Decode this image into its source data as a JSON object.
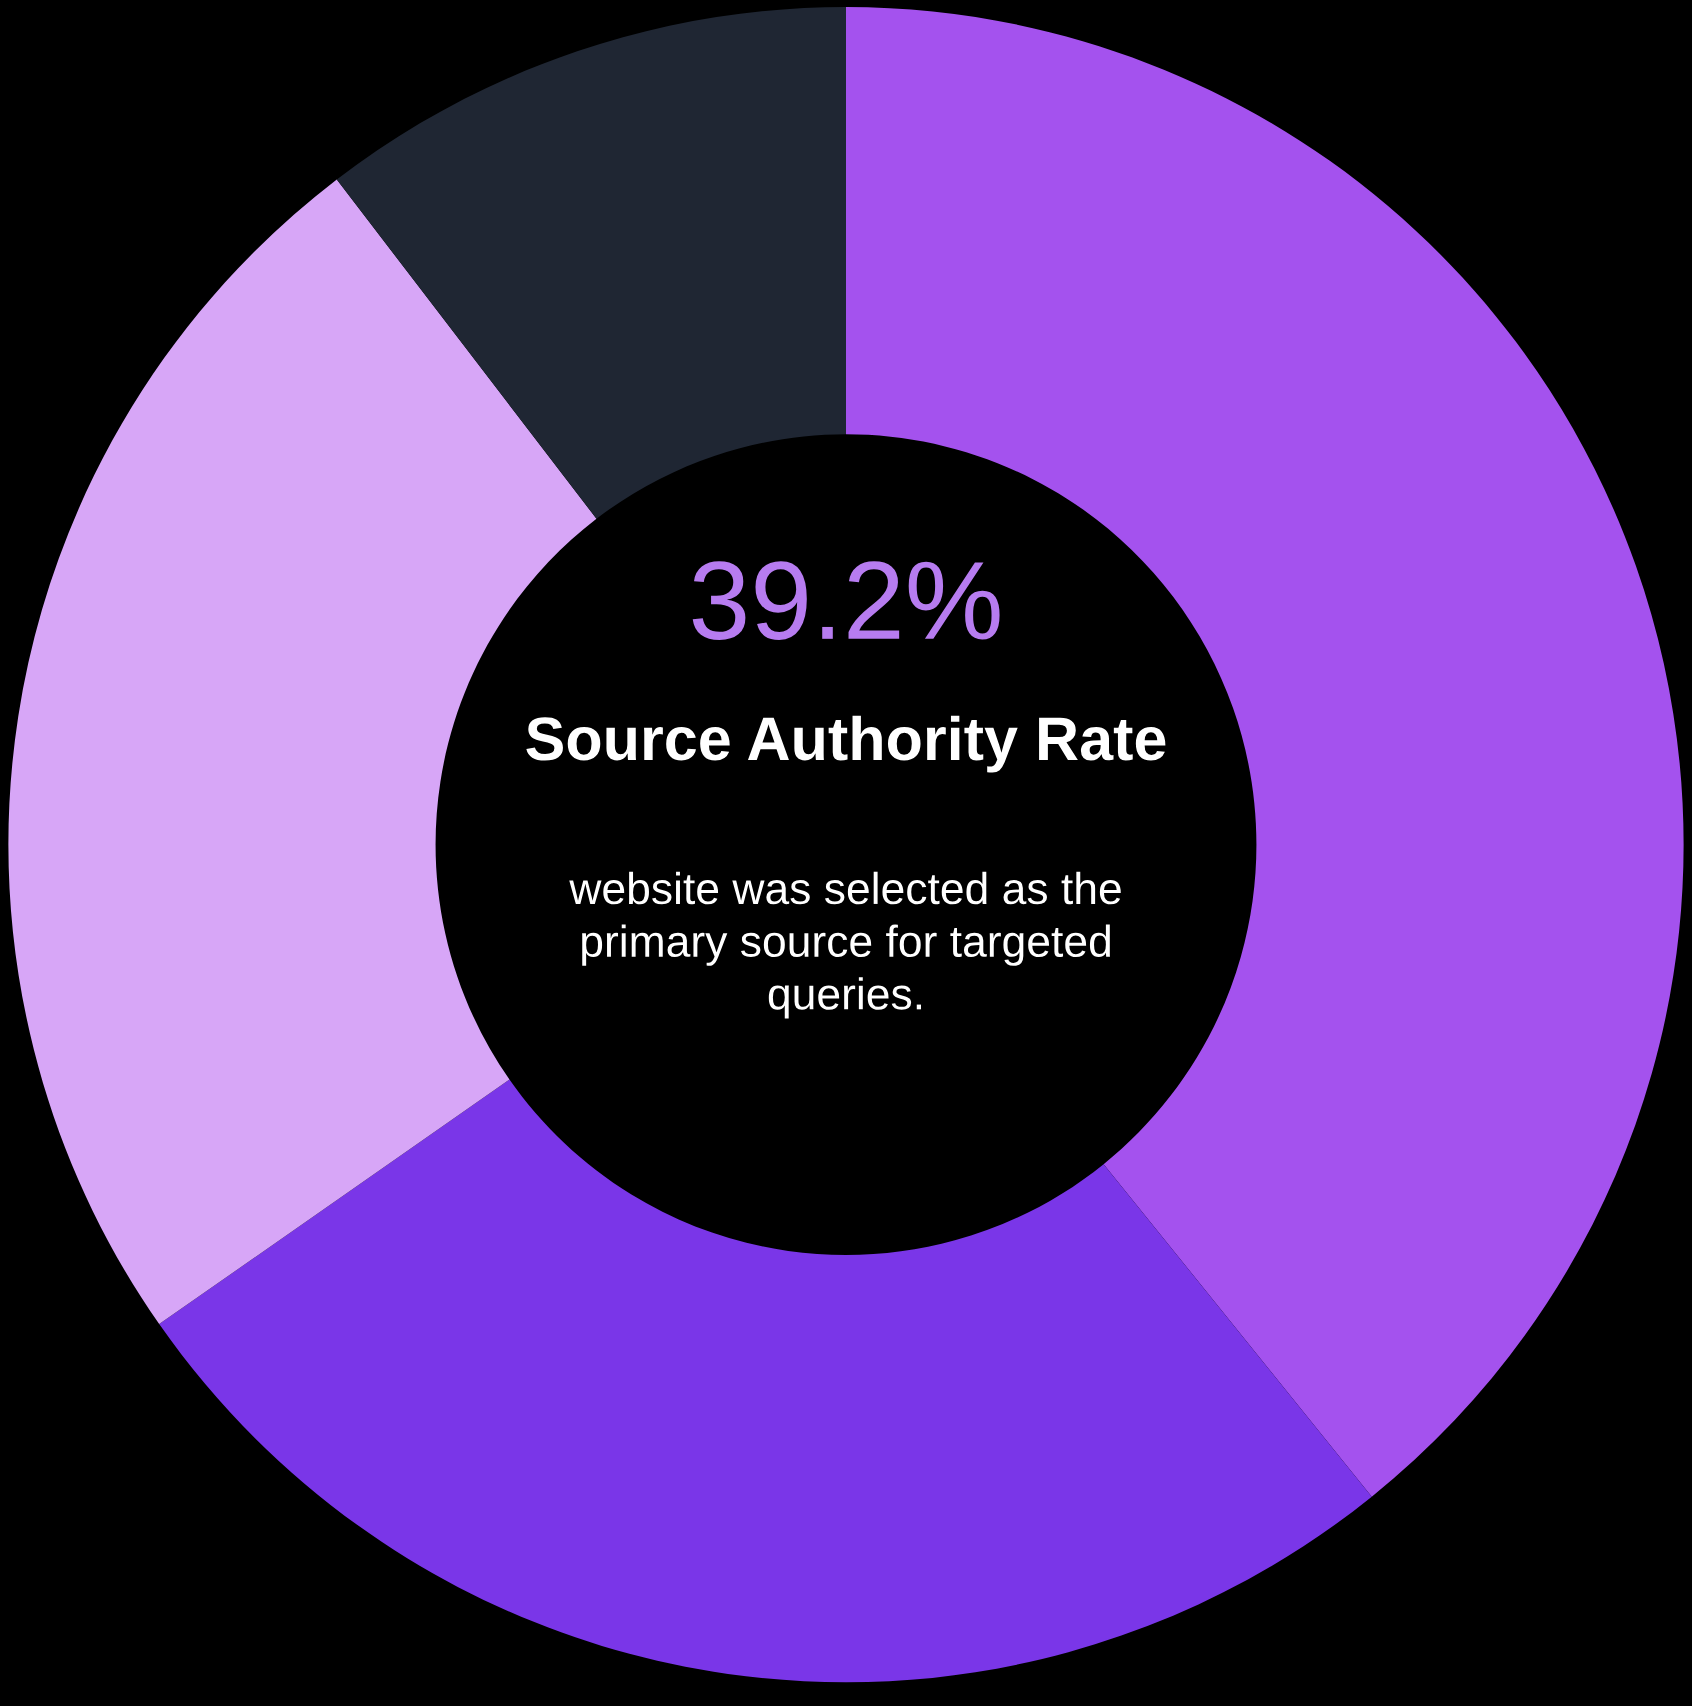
{
  "chart_data": {
    "type": "donut",
    "categories": [
      null,
      null,
      null,
      null
    ],
    "values": [
      39.2,
      26.1,
      24.3,
      10.4
    ],
    "colors": [
      "#a452ee",
      "#7a36e8",
      "#d7a6f7",
      "#1f2633"
    ],
    "annotations": [
      "39.2%",
      "Source Authority Rate",
      "website was selected as the primary source for targeted queries."
    ]
  }
}
